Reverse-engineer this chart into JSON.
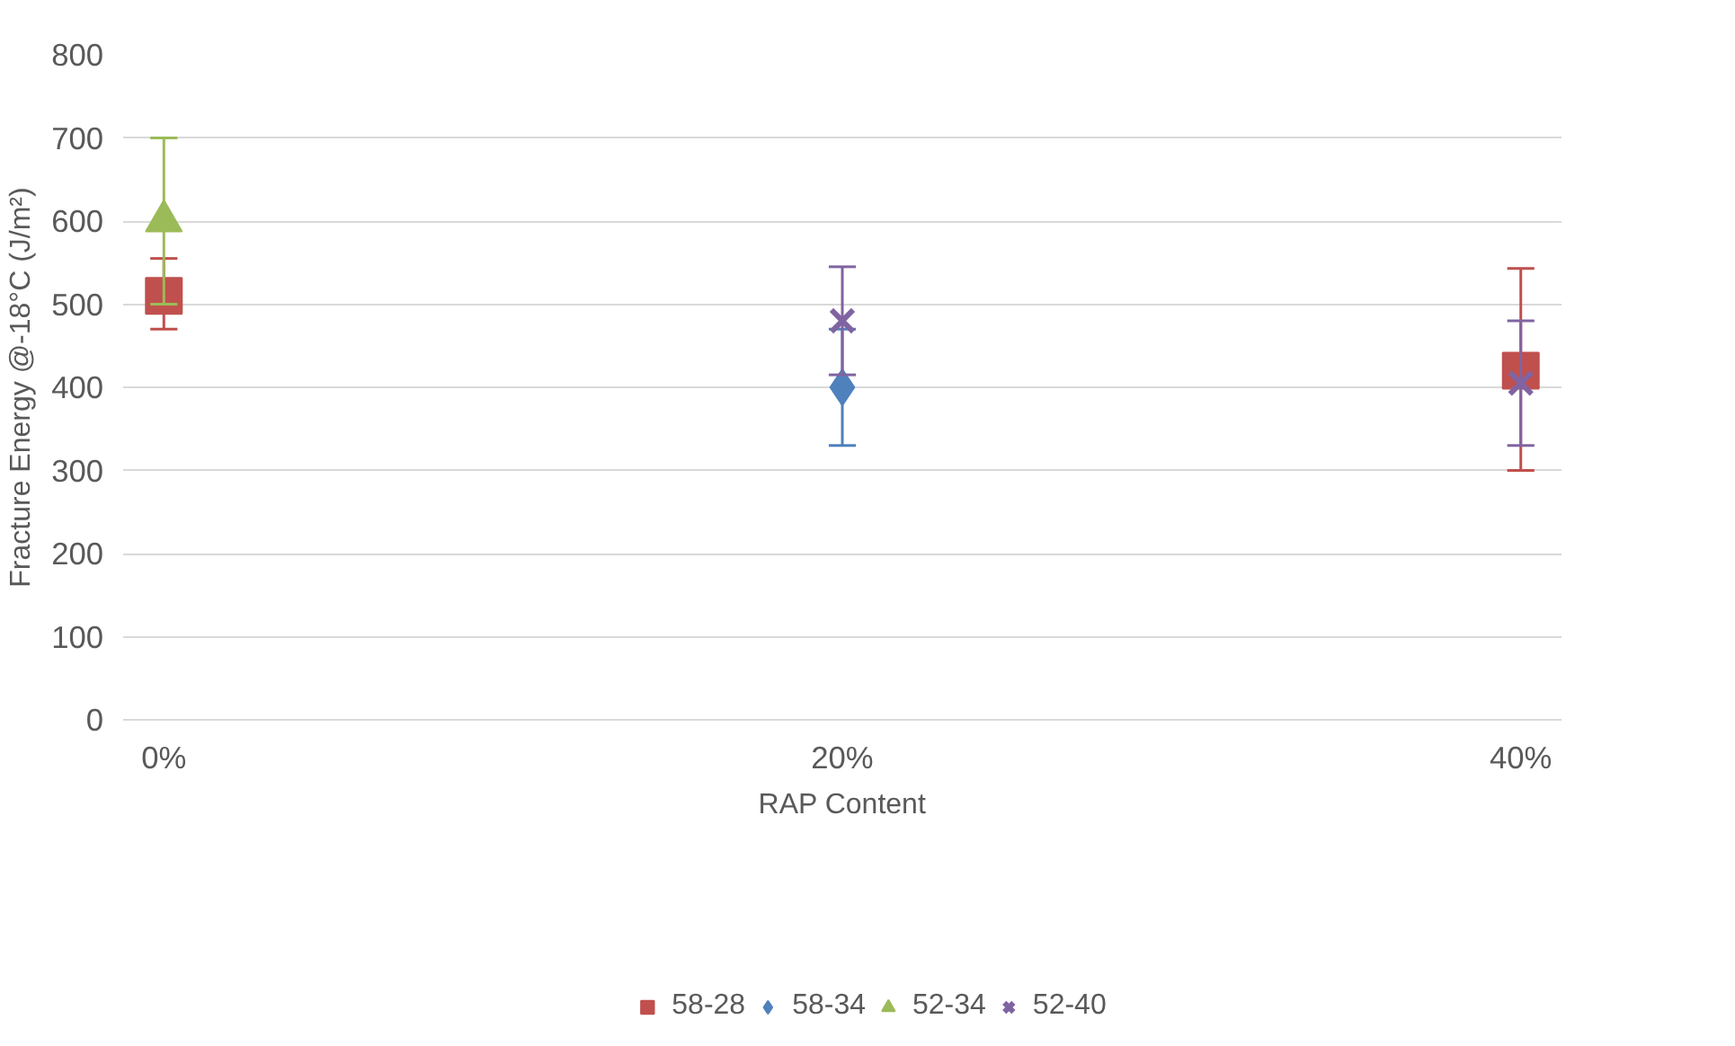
{
  "chart_data": {
    "type": "scatter",
    "xlabel": "RAP Content",
    "ylabel": "Fracture Energy @-18°C (J/m²)",
    "categories": [
      "0%",
      "20%",
      "40%"
    ],
    "series": [
      {
        "name": "58-28",
        "color": "#c0504d",
        "marker": "square",
        "values": [
          510,
          null,
          420
        ],
        "errors": [
          [
            470,
            555
          ],
          null,
          [
            300,
            543
          ]
        ]
      },
      {
        "name": "58-34",
        "color": "#4f81bd",
        "marker": "diamond",
        "values": [
          null,
          400,
          null
        ],
        "errors": [
          null,
          70,
          null
        ]
      },
      {
        "name": "52-34",
        "color": "#9bbb59",
        "marker": "triangle",
        "values": [
          600,
          null,
          null
        ],
        "errors": [
          100,
          null,
          null
        ]
      },
      {
        "name": "52-40",
        "color": "#8064a2",
        "marker": "cross",
        "values": [
          null,
          480,
          405
        ],
        "errors": [
          null,
          65,
          75
        ]
      }
    ],
    "ylim": [
      0,
      800
    ],
    "yticks": [
      0,
      100,
      200,
      300,
      400,
      500,
      600,
      700,
      800
    ],
    "grid": "y",
    "legend": "bottom"
  }
}
